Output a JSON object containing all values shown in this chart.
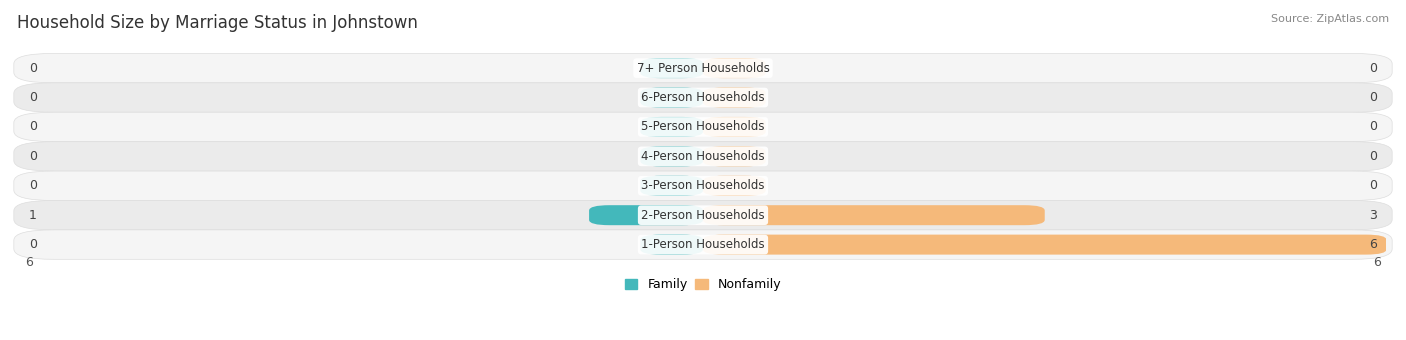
{
  "title": "Household Size by Marriage Status in Johnstown",
  "source": "Source: ZipAtlas.com",
  "categories": [
    "7+ Person Households",
    "6-Person Households",
    "5-Person Households",
    "4-Person Households",
    "3-Person Households",
    "2-Person Households",
    "1-Person Households"
  ],
  "family_values": [
    0,
    0,
    0,
    0,
    0,
    1,
    0
  ],
  "nonfamily_values": [
    0,
    0,
    0,
    0,
    0,
    3,
    6
  ],
  "family_color": "#43B8BB",
  "nonfamily_color": "#F5B97A",
  "row_bg_light": "#F5F5F5",
  "row_bg_dark": "#EBEBEB",
  "row_border_color": "#DDDDDD",
  "xlim": 6,
  "label_color": "#444444",
  "title_color": "#333333",
  "title_fontsize": 12,
  "source_fontsize": 8,
  "bar_fontsize": 8.5,
  "value_fontsize": 9,
  "legend_labels": [
    "Family",
    "Nonfamily"
  ],
  "background_color": "#FFFFFF",
  "stub_size": 0.55
}
